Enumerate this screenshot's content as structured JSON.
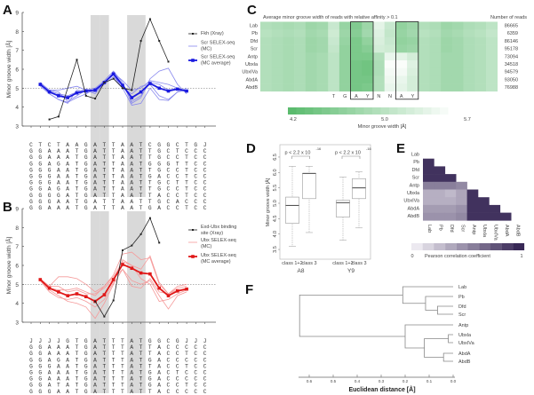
{
  "panel_labels": [
    "A",
    "B",
    "C",
    "D",
    "E",
    "F"
  ],
  "chart_data": [
    {
      "panel": "A",
      "type": "line",
      "ylabel": "Minor groove width [Å]",
      "ylim": [
        3,
        9
      ],
      "yticks": [
        "3",
        "4",
        "5",
        "6",
        "7",
        "8",
        "9"
      ],
      "reference_line": 5,
      "shaded_columns": [
        7,
        8,
        11,
        12
      ],
      "legend": [
        "Fkh (Xray)",
        "Scr SELEX-seq",
        "(MC)",
        "Scr SELEX-seq",
        "(MC average)"
      ],
      "colors": {
        "xray": "#222222",
        "mc": "#8888ee",
        "avg": "#1a1adf"
      },
      "xray": [
        null,
        null,
        3.35,
        3.5,
        null,
        6.5,
        4.6,
        4.45,
        5.3,
        5.5,
        5.0,
        4.9,
        7.5,
        8.65,
        7.5,
        6.4
      ],
      "mc_average": [
        null,
        5.2,
        4.8,
        4.6,
        4.5,
        4.75,
        4.85,
        4.9,
        5.3,
        5.75,
        5.15,
        4.5,
        4.8,
        5.25,
        5.0,
        4.85,
        4.95,
        4.85
      ],
      "mc_series": [
        [
          null,
          5.3,
          4.9,
          4.8,
          4.3,
          4.6,
          4.9,
          5.0,
          5.4,
          5.9,
          5.3,
          4.2,
          4.5,
          5.5,
          5.9,
          6.05,
          5.2,
          4.7
        ],
        [
          null,
          5.1,
          4.7,
          4.4,
          4.2,
          4.9,
          4.8,
          4.8,
          5.2,
          5.6,
          5.0,
          4.7,
          5.1,
          5.2,
          4.6,
          4.4,
          4.8,
          4.9
        ],
        [
          null,
          5.2,
          4.9,
          4.9,
          5.0,
          5.1,
          4.9,
          4.7,
          5.3,
          5.8,
          5.4,
          4.9,
          5.0,
          5.4,
          5.3,
          5.2,
          5.0,
          4.8
        ],
        [
          null,
          5.3,
          4.7,
          4.4,
          4.25,
          4.5,
          4.7,
          4.95,
          5.3,
          5.7,
          5.0,
          4.1,
          4.2,
          5.0,
          4.4,
          4.35,
          4.8,
          5.0
        ],
        [
          null,
          5.15,
          4.85,
          4.7,
          4.6,
          4.8,
          4.95,
          4.85,
          5.25,
          5.85,
          5.2,
          4.3,
          4.6,
          5.3,
          5.2,
          4.9,
          5.0,
          4.85
        ]
      ],
      "sequences": [
        "CTCTAAGATTAATCGGCTGJ",
        "GGAAATGATTAATTGCTCCC",
        "GGAAATGATTAATTGCCTCC",
        "GGAGATGATTAATGGGTTCC",
        "GGGAATGATTAATTGCCTCC",
        "GGGAATGATTAATGACCTCC",
        "GGGAATGATTAATTGCTTCC",
        "GGAGATGATTAATTGCCTCC",
        "GGGGATGATTAATTACCTCC",
        "GGGAATGATTAATTGCACCC",
        "GGAAATGATTAATGACCTCC"
      ]
    },
    {
      "panel": "B",
      "type": "line",
      "ylabel": "Minor groove width [Å]",
      "ylim": [
        3,
        9
      ],
      "yticks": [
        "3",
        "4",
        "5",
        "6",
        "7",
        "8",
        "9"
      ],
      "reference_line": 5,
      "shaded_columns": [
        7,
        8,
        11,
        12
      ],
      "legend": [
        "Exd-Ubx binding",
        "site (Xray)",
        "Ubx SELEX-seq",
        "(MC)",
        "Ubx SELEX-seq",
        "(MC average)"
      ],
      "colors": {
        "xray": "#222222",
        "mc": "#f59a9a",
        "avg": "#e01818"
      },
      "xray": [
        null,
        null,
        null,
        null,
        null,
        null,
        null,
        4.1,
        3.3,
        4.15,
        6.8,
        7.05,
        7.65,
        8.5,
        7.2
      ],
      "mc_average": [
        null,
        5.25,
        4.8,
        4.6,
        4.4,
        4.5,
        4.35,
        4.1,
        4.45,
        5.25,
        6.05,
        5.85,
        5.6,
        5.55,
        4.8,
        4.4,
        4.65,
        4.75
      ],
      "mc_series": [
        [
          null,
          5.3,
          4.9,
          5.4,
          5.4,
          5.3,
          5.0,
          4.6,
          4.9,
          5.5,
          6.6,
          6.7,
          6.3,
          6.4,
          5.0,
          4.5,
          4.8,
          4.9
        ],
        [
          null,
          5.2,
          4.7,
          4.4,
          4.1,
          4.0,
          3.8,
          3.2,
          4.0,
          5.0,
          5.8,
          5.2,
          5.0,
          5.2,
          4.4,
          3.7,
          4.4,
          4.6
        ],
        [
          null,
          5.3,
          4.8,
          4.7,
          4.7,
          4.8,
          4.6,
          4.4,
          4.9,
          5.4,
          6.2,
          6.0,
          5.8,
          6.5,
          5.1,
          4.5,
          4.9,
          5.0
        ],
        [
          null,
          5.2,
          4.6,
          4.3,
          4.2,
          4.3,
          4.1,
          3.8,
          4.2,
          5.1,
          6.3,
          6.0,
          5.3,
          5.0,
          4.1,
          4.2,
          4.5,
          4.7
        ],
        [
          null,
          5.25,
          4.9,
          4.9,
          4.6,
          4.7,
          4.5,
          4.5,
          4.8,
          5.3,
          5.8,
          4.9,
          4.8,
          5.3,
          4.6,
          4.5,
          4.7,
          4.8
        ]
      ],
      "sequences": [
        "JJJJGTGATTTATGGCGJJJ",
        "GGAAATGATTTATTACCCCC",
        "GGAAATGATTTATTACCTCC",
        "GGAGATGATTTATGACCCCC",
        "GGGAATGATTTATTACCTCC",
        "GGAAATGATTTATGACTCCC",
        "GGAAATGATTTATGACCCCC",
        "GGATATGATTTATGACCTCC",
        "GGGAATGATTTATTACCCCC",
        "GGGAATGATTTATGACTCCC",
        "GGAAATGATTTATTGCCTCC"
      ]
    },
    {
      "panel": "C",
      "type": "heatmap",
      "title": "Average minor groove width of reads with relative affinity > 0.1",
      "reads_header": "Number of reads",
      "rows": [
        "Lab",
        "Pb",
        "Dfd",
        "Scr",
        "Antp",
        "Ubxla",
        "UbxIVa",
        "AbdA",
        "AbdB"
      ],
      "reads": [
        "86665",
        "6359",
        "86146",
        "95178",
        "73094",
        "34518",
        "94579",
        "93050",
        "76988"
      ],
      "motif_labels": [
        "T",
        "G",
        "A",
        "Y",
        "N",
        "N",
        "A",
        "Y"
      ],
      "motif_start_column": 6,
      "boxed_columns": [
        [
          8,
          9
        ],
        [
          12,
          13
        ]
      ],
      "colorbar": {
        "min": 4.2,
        "mid": 5.0,
        "max": 5.7,
        "labels": [
          "4.2",
          "5.0",
          "5.7"
        ],
        "title": "Minor groove width [Å]"
      },
      "values": [
        [
          5.0,
          4.95,
          4.9,
          4.95,
          4.8,
          4.85,
          5.2,
          4.75,
          4.55,
          4.8,
          5.45,
          5.2,
          4.7,
          4.8,
          5.0,
          4.95,
          4.8,
          4.85,
          4.95,
          5.0,
          5.1
        ],
        [
          5.05,
          5.0,
          4.95,
          5.0,
          4.85,
          4.9,
          5.25,
          4.8,
          4.6,
          4.85,
          5.4,
          5.15,
          4.75,
          4.85,
          5.05,
          5.0,
          4.85,
          4.9,
          5.0,
          5.05,
          5.15
        ],
        [
          5.0,
          4.95,
          4.9,
          4.95,
          4.8,
          4.85,
          5.2,
          4.75,
          4.5,
          4.7,
          5.35,
          5.2,
          4.7,
          4.75,
          5.0,
          4.95,
          4.8,
          4.85,
          4.95,
          5.0,
          5.1
        ],
        [
          5.0,
          4.95,
          4.9,
          4.95,
          4.8,
          4.85,
          5.15,
          4.7,
          4.5,
          4.6,
          5.3,
          5.25,
          4.75,
          4.8,
          5.0,
          4.95,
          4.8,
          4.85,
          4.95,
          5.0,
          5.1
        ],
        [
          5.0,
          4.95,
          4.9,
          4.95,
          4.85,
          4.9,
          5.1,
          4.7,
          4.5,
          4.5,
          5.0,
          5.5,
          5.45,
          5.3,
          5.0,
          4.95,
          4.85,
          4.85,
          4.95,
          5.0,
          5.1
        ],
        [
          5.0,
          4.95,
          4.9,
          4.95,
          4.85,
          4.9,
          5.1,
          4.7,
          4.45,
          4.4,
          4.95,
          5.65,
          5.65,
          5.4,
          5.0,
          4.95,
          4.85,
          4.85,
          4.95,
          5.0,
          5.1
        ],
        [
          5.0,
          4.95,
          4.9,
          4.95,
          4.85,
          4.9,
          5.1,
          4.7,
          4.45,
          4.4,
          4.95,
          5.6,
          5.6,
          5.35,
          5.0,
          4.95,
          4.85,
          4.85,
          4.95,
          5.0,
          5.1
        ],
        [
          5.0,
          4.95,
          4.9,
          4.95,
          4.85,
          4.9,
          5.1,
          4.7,
          4.45,
          4.45,
          5.0,
          5.55,
          5.5,
          5.3,
          5.0,
          4.95,
          4.85,
          4.85,
          4.95,
          5.0,
          5.1
        ],
        [
          5.0,
          4.95,
          4.9,
          4.95,
          4.85,
          4.9,
          5.1,
          4.7,
          4.45,
          4.5,
          5.0,
          5.5,
          5.45,
          5.3,
          5.0,
          4.95,
          4.85,
          4.85,
          4.95,
          5.0,
          5.1
        ]
      ]
    },
    {
      "panel": "D",
      "type": "box",
      "ylabel": "Minor groove width [Å]",
      "ylim": [
        3.5,
        6.5
      ],
      "yticks": [
        "3.5",
        "4.0",
        "4.5",
        "5.0",
        "5.5",
        "6.0",
        "6.5"
      ],
      "groups": [
        "A8",
        "Y9"
      ],
      "categories": [
        "class 1+2",
        "class 3",
        "class 1+2",
        "class 3"
      ],
      "p_value_label": "p < 2.2 x 10",
      "p_value_exponent": "-16",
      "boxes": [
        {
          "whisker_low": 3.6,
          "q1": 4.35,
          "median": 4.93,
          "q3": 5.2,
          "whisker_high": 6.2
        },
        {
          "whisker_low": 4.05,
          "q1": 5.15,
          "median": 5.97,
          "q3": 5.97,
          "whisker_high": 6.2
        },
        {
          "whisker_low": 3.8,
          "q1": 4.55,
          "median": 5.02,
          "q3": 5.1,
          "whisker_high": 5.85
        },
        {
          "whisker_low": 4.2,
          "q1": 5.15,
          "median": 5.5,
          "q3": 5.8,
          "whisker_high": 6.02
        }
      ]
    },
    {
      "panel": "E",
      "type": "heatmap",
      "labels": [
        "Lab",
        "Pb",
        "Dfd",
        "Scr",
        "Antp",
        "Ubxla",
        "UbxIVa",
        "AbdA",
        "AbdB"
      ],
      "colorbar": {
        "min_label": "0",
        "max_label": "1",
        "title": "Pearson correlation coefficient"
      },
      "colors": {
        "low": "#ece9f0",
        "high": "#382856"
      },
      "lower_triangle": [
        [],
        [
          0.95
        ],
        [
          0.95,
          0.95
        ],
        [
          0.95,
          0.95,
          0.95
        ],
        [
          0.55,
          0.55,
          0.55,
          0.5
        ],
        [
          0.3,
          0.3,
          0.25,
          0.35,
          0.95
        ],
        [
          0.3,
          0.3,
          0.3,
          0.35,
          0.95,
          0.95
        ],
        [
          0.4,
          0.4,
          0.4,
          0.45,
          0.95,
          0.95,
          0.95
        ],
        [
          0.45,
          0.45,
          0.45,
          0.5,
          0.95,
          0.95,
          0.95,
          0.95
        ]
      ]
    },
    {
      "panel": "F",
      "type": "dendrogram",
      "xlabel": "Euclidean distance [Å]",
      "xlim": [
        0.6,
        0.0
      ],
      "xticks": [
        "0.6",
        "0.5",
        "0.4",
        "0.3",
        "0.2",
        "0.1",
        "0.0"
      ],
      "leaves": [
        "Lab",
        "Pb",
        "Dfd",
        "Scr",
        "Antp",
        "Ubxla",
        "UbxIVa",
        "AbdA",
        "AbdB"
      ],
      "merges": [
        {
          "a": "Dfd",
          "b": "Scr",
          "height": 0.065
        },
        {
          "a": "Pb",
          "b": "Dfd+Scr",
          "height": 0.115
        },
        {
          "a": "Lab",
          "b": "Pb+Dfd+Scr",
          "height": 0.21
        },
        {
          "a": "Ubxla",
          "b": "UbxIVa",
          "height": 0.02
        },
        {
          "a": "AbdA",
          "b": "AbdB",
          "height": 0.04
        },
        {
          "a": "Ubxla+UbxIVa",
          "b": "AbdA+AbdB",
          "height": 0.12
        },
        {
          "a": "Antp",
          "b": "Ubx/Abd",
          "height": 0.2
        },
        {
          "a": "anterior",
          "b": "posterior",
          "height": 0.64
        }
      ]
    }
  ]
}
